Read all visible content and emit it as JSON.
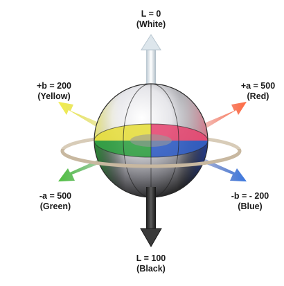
{
  "labels": {
    "top": {
      "value": "L = 0",
      "name": "(White)"
    },
    "bottom": {
      "value": "L = 100",
      "name": "(Black)"
    },
    "ul": {
      "value": "+b = 200",
      "name": "(Yellow)"
    },
    "ur": {
      "value": "+a = 500",
      "name": "(Red)"
    },
    "ll": {
      "value": "-a = 500",
      "name": "(Green)"
    },
    "lr": {
      "value": "-b = - 200",
      "name": "(Blue)"
    }
  },
  "colors": {
    "white_axis": "#e8eef2",
    "black_axis": "#3a3a3a",
    "yellow": "#e8e020",
    "red": "#f05a3a",
    "green": "#3cb43c",
    "blue": "#2f6fd0",
    "ring": "#c8b8a0"
  }
}
